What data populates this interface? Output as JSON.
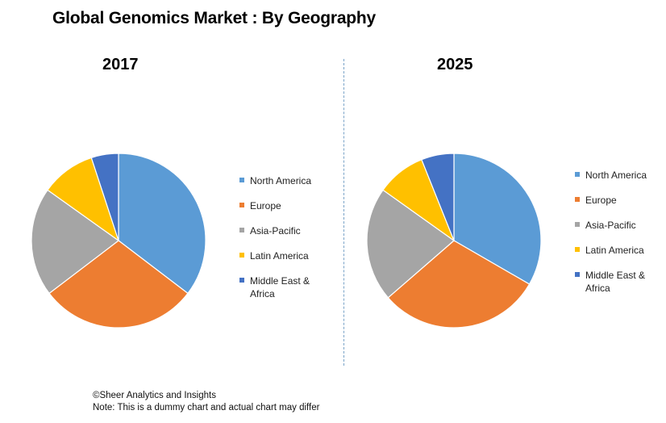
{
  "title": "Global Genomics Market : By Geography",
  "colors": {
    "north_america": "#5B9BD5",
    "europe": "#ED7D31",
    "asia_pacific": "#A5A5A5",
    "latin_america": "#FFC000",
    "mea": "#4472C4"
  },
  "chart_data": [
    {
      "type": "pie",
      "title": "2017",
      "categories": [
        "North America",
        "Europe",
        "Asia-Pacific",
        "Latin America",
        "Middle East & Africa"
      ],
      "values": [
        35,
        29,
        20,
        10,
        5
      ],
      "legend_position": "right"
    },
    {
      "type": "pie",
      "title": "2025",
      "categories": [
        "North America",
        "Europe",
        "Asia-Pacific",
        "Latin America",
        "Middle East & Africa"
      ],
      "values": [
        33,
        30,
        21,
        9,
        6
      ],
      "legend_position": "right"
    }
  ],
  "footer": {
    "source": "©Sheer Analytics and Insights",
    "note": "Note: This is a dummy chart and actual chart may differ"
  }
}
